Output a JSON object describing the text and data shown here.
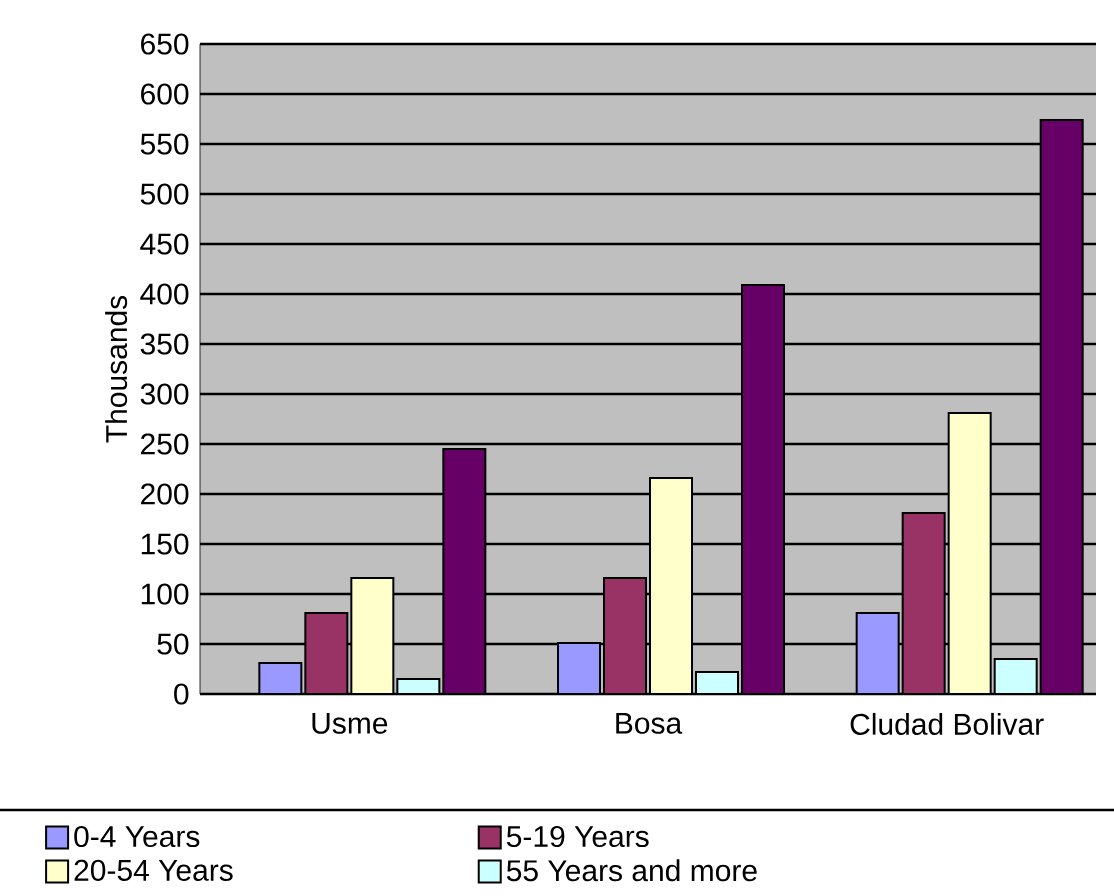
{
  "chart_data": {
    "type": "bar",
    "ylabel": "Thousands",
    "categories": [
      "Usme",
      "Bosa",
      "Cludad Bolivar"
    ],
    "series": [
      {
        "name": "0-4 Years",
        "color": "#9999ff",
        "values": [
          31,
          51,
          81
        ]
      },
      {
        "name": "5-19 Years",
        "color": "#993366",
        "values": [
          81,
          116,
          181
        ]
      },
      {
        "name": "20-54 Years",
        "color": "#ffffcc",
        "values": [
          116,
          216,
          281
        ]
      },
      {
        "name": "55 Years and more",
        "color": "#ccffff",
        "values": [
          15,
          22,
          35
        ]
      },
      {
        "color": "#660066",
        "values": [
          245,
          409,
          574
        ]
      }
    ],
    "ylim": [
      0,
      650
    ],
    "yticks": [
      0,
      50,
      100,
      150,
      200,
      250,
      300,
      350,
      400,
      450,
      500,
      550,
      600,
      650
    ],
    "grid": "y",
    "legend": "bottom"
  }
}
